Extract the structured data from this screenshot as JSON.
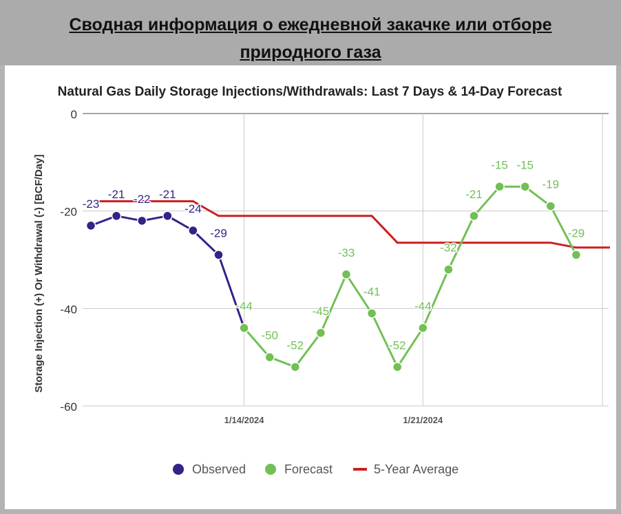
{
  "header": {
    "title": "Сводная информация о ежедневной закачке или отборе природного газа"
  },
  "chart_data": {
    "type": "line",
    "title": "Natural Gas Daily Storage Injections/Withdrawals: Last 7 Days & 14-Day Forecast",
    "xlabel": "",
    "ylabel": "Storage Injection (+) Or Withdrawal (-) [BCF/Day]",
    "ylim": [
      -60,
      0
    ],
    "yticks": [
      0,
      -20,
      -40,
      -60
    ],
    "ytick_labels": [
      "0",
      "-20",
      "-40",
      "-60"
    ],
    "xticks": [
      "2024-01-14",
      "2024-01-21"
    ],
    "xtick_labels": [
      "1/14/2024",
      "1/21/2024"
    ],
    "grid": true,
    "legend_position": "bottom",
    "series": [
      {
        "name": "Observed",
        "color": "#332288",
        "x": [
          "2024-01-08",
          "2024-01-09",
          "2024-01-10",
          "2024-01-11",
          "2024-01-12",
          "2024-01-13",
          "2024-01-14"
        ],
        "values": [
          -23,
          -21,
          -22,
          -21,
          -24,
          -29,
          -44
        ],
        "labels": [
          "-23",
          "-21",
          "-22",
          "-21",
          "-24",
          "-29",
          ""
        ]
      },
      {
        "name": "Forecast",
        "color": "#72bf56",
        "x": [
          "2024-01-14",
          "2024-01-15",
          "2024-01-16",
          "2024-01-17",
          "2024-01-18",
          "2024-01-19",
          "2024-01-20",
          "2024-01-21",
          "2024-01-22",
          "2024-01-23",
          "2024-01-24",
          "2024-01-25",
          "2024-01-26",
          "2024-01-27"
        ],
        "values": [
          -44,
          -50,
          -52,
          -45,
          -33,
          -41,
          -52,
          -44,
          -32,
          -21,
          -15,
          -15,
          -19,
          -29
        ],
        "labels": [
          "-44",
          "-50",
          "-52",
          "-45",
          "-33",
          "-41",
          "-52",
          "-44",
          "-32",
          "-21",
          "-15",
          "-15",
          "-19",
          "-29"
        ]
      },
      {
        "name": "5-Year Average",
        "color": "#cc1f1f",
        "x": [
          "2024-01-08",
          "2024-01-09",
          "2024-01-10",
          "2024-01-11",
          "2024-01-12",
          "2024-01-13",
          "2024-01-14",
          "2024-01-15",
          "2024-01-16",
          "2024-01-17",
          "2024-01-18",
          "2024-01-19",
          "2024-01-20",
          "2024-01-21",
          "2024-01-22",
          "2024-01-23",
          "2024-01-24",
          "2024-01-25",
          "2024-01-26",
          "2024-01-27"
        ],
        "values": [
          -18,
          -18,
          -18,
          -18,
          -18,
          -21,
          -21,
          -21,
          -21,
          -21,
          -21,
          -21,
          -26.5,
          -26.5,
          -26.5,
          -26.5,
          -26.5,
          -26.5,
          -26.5,
          -27.5
        ]
      }
    ]
  }
}
